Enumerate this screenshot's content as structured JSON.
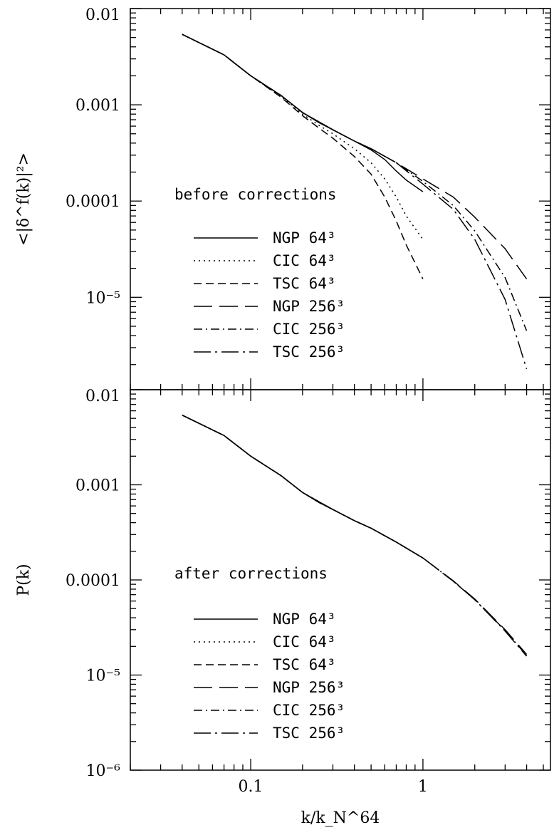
{
  "chart_data": [
    {
      "type": "line",
      "panel": "top",
      "ylabel": "<|δ^f(k)|²>",
      "xlabel": "",
      "x_scale": "log",
      "y_scale": "log",
      "xlim": [
        0.02,
        5.5
      ],
      "ylim": [
        1e-06,
        0.01
      ],
      "ytick_labels": [
        "0.01",
        "0.001",
        "0.0001",
        "10⁻⁵"
      ],
      "annotation": "before corrections",
      "legend_placement": "lower-left",
      "series": [
        {
          "name": "NGP 64³",
          "dash": "solid",
          "x": [
            0.04,
            0.07,
            0.1,
            0.15,
            0.2,
            0.25,
            0.3,
            0.4,
            0.5,
            0.6,
            0.7,
            0.8,
            1.0
          ],
          "y": [
            0.0054,
            0.0033,
            0.002,
            0.00125,
            0.00083,
            0.00065,
            0.00055,
            0.00042,
            0.00034,
            0.00027,
            0.000205,
            0.000165,
            0.000125
          ]
        },
        {
          "name": "CIC 64³",
          "dash": "dotted",
          "x": [
            0.04,
            0.07,
            0.1,
            0.15,
            0.2,
            0.25,
            0.3,
            0.4,
            0.5,
            0.6,
            0.7,
            0.8,
            1.0
          ],
          "y": [
            0.0054,
            0.0033,
            0.002,
            0.00122,
            0.0008,
            0.00061,
            0.0005,
            0.00035,
            0.00025,
            0.00017,
            0.00011,
            7e-05,
            4e-05
          ]
        },
        {
          "name": "TSC 64³",
          "dash": "dashed",
          "x": [
            0.04,
            0.07,
            0.1,
            0.15,
            0.2,
            0.25,
            0.3,
            0.4,
            0.5,
            0.6,
            0.7,
            0.8,
            1.0
          ],
          "y": [
            0.0054,
            0.0033,
            0.002,
            0.0012,
            0.00077,
            0.00057,
            0.00045,
            0.00029,
            0.00019,
            0.00011,
            6.2e-05,
            3.5e-05,
            1.55e-05
          ]
        },
        {
          "name": "NGP 256³",
          "dash": "longdash",
          "x": [
            0.04,
            0.07,
            0.1,
            0.15,
            0.2,
            0.3,
            0.4,
            0.5,
            0.7,
            1.0,
            1.5,
            2.0,
            3.0,
            4.0
          ],
          "y": [
            0.0054,
            0.0033,
            0.002,
            0.00125,
            0.00083,
            0.00055,
            0.00042,
            0.00035,
            0.00025,
            0.00017,
            0.00011,
            6.8e-05,
            3.2e-05,
            1.55e-05
          ]
        },
        {
          "name": "CIC 256³",
          "dash": "dashdot",
          "x": [
            0.04,
            0.07,
            0.1,
            0.15,
            0.2,
            0.3,
            0.4,
            0.5,
            0.7,
            1.0,
            1.5,
            2.0,
            3.0,
            4.0
          ],
          "y": [
            0.0054,
            0.0033,
            0.002,
            0.00125,
            0.00083,
            0.00055,
            0.00042,
            0.00035,
            0.00025,
            0.00016,
            9e-05,
            4.9e-05,
            1.6e-05,
            4.5e-06
          ]
        },
        {
          "name": "TSC 256³",
          "dash": "longdashdot",
          "x": [
            0.04,
            0.07,
            0.1,
            0.15,
            0.2,
            0.3,
            0.4,
            0.5,
            0.7,
            1.0,
            1.5,
            2.0,
            3.0,
            4.0
          ],
          "y": [
            0.0054,
            0.0033,
            0.002,
            0.00125,
            0.00083,
            0.00055,
            0.00042,
            0.00035,
            0.00025,
            0.00015,
            8.2e-05,
            4e-05,
            9.5e-06,
            1.8e-06
          ]
        }
      ]
    },
    {
      "type": "line",
      "panel": "bottom",
      "ylabel": "P(k)",
      "xlabel": "k/k_N^64",
      "x_scale": "log",
      "y_scale": "log",
      "xlim": [
        0.02,
        5.5
      ],
      "ylim": [
        1e-06,
        0.01
      ],
      "ytick_labels": [
        "0.01",
        "0.001",
        "0.0001",
        "10⁻⁵",
        "10⁻⁶"
      ],
      "xtick_labels": [
        "0.1",
        "1"
      ],
      "annotation": "after corrections",
      "legend_placement": "lower-left",
      "series": [
        {
          "name": "NGP 64³",
          "dash": "solid",
          "x": [
            0.04,
            0.07,
            0.1,
            0.15,
            0.2,
            0.25,
            0.3,
            0.4,
            0.5,
            0.7,
            1.0
          ],
          "y": [
            0.0054,
            0.0033,
            0.002,
            0.00125,
            0.00083,
            0.00065,
            0.00055,
            0.00042,
            0.00035,
            0.00025,
            0.00017
          ]
        },
        {
          "name": "CIC 64³",
          "dash": "dotted",
          "x": [
            0.04,
            0.07,
            0.1,
            0.15,
            0.2,
            0.25,
            0.3,
            0.4,
            0.5,
            0.7,
            1.0
          ],
          "y": [
            0.0054,
            0.0033,
            0.002,
            0.00125,
            0.00083,
            0.00065,
            0.00055,
            0.00042,
            0.00035,
            0.00025,
            0.00017
          ]
        },
        {
          "name": "TSC 64³",
          "dash": "dashed",
          "x": [
            0.04,
            0.07,
            0.1,
            0.15,
            0.2,
            0.25,
            0.3,
            0.4,
            0.5,
            0.7,
            1.0
          ],
          "y": [
            0.0054,
            0.0033,
            0.002,
            0.00125,
            0.00083,
            0.00065,
            0.00055,
            0.00042,
            0.00035,
            0.00025,
            0.00017
          ]
        },
        {
          "name": "NGP 256³",
          "dash": "longdash",
          "x": [
            0.04,
            0.07,
            0.1,
            0.15,
            0.2,
            0.3,
            0.4,
            0.5,
            0.7,
            1.0,
            1.5,
            2.0,
            3.0,
            4.0
          ],
          "y": [
            0.0054,
            0.0033,
            0.002,
            0.00125,
            0.00083,
            0.00055,
            0.00042,
            0.00035,
            0.00025,
            0.00017,
            9.8e-05,
            6.3e-05,
            3e-05,
            1.65e-05
          ]
        },
        {
          "name": "CIC 256³",
          "dash": "dashdot",
          "x": [
            0.04,
            0.07,
            0.1,
            0.15,
            0.2,
            0.3,
            0.4,
            0.5,
            0.7,
            1.0,
            1.5,
            2.0,
            3.0,
            4.0
          ],
          "y": [
            0.0054,
            0.0033,
            0.002,
            0.00125,
            0.00083,
            0.00055,
            0.00042,
            0.00035,
            0.00025,
            0.00017,
            9.7e-05,
            6.2e-05,
            2.95e-05,
            1.6e-05
          ]
        },
        {
          "name": "TSC 256³",
          "dash": "longdashdot",
          "x": [
            0.04,
            0.07,
            0.1,
            0.15,
            0.2,
            0.3,
            0.4,
            0.5,
            0.7,
            1.0,
            1.5,
            2.0,
            3.0,
            4.0
          ],
          "y": [
            0.0054,
            0.0033,
            0.002,
            0.00125,
            0.00083,
            0.00055,
            0.00042,
            0.00035,
            0.00025,
            0.00017,
            9.7e-05,
            6.2e-05,
            2.9e-05,
            1.58e-05
          ]
        }
      ]
    }
  ]
}
